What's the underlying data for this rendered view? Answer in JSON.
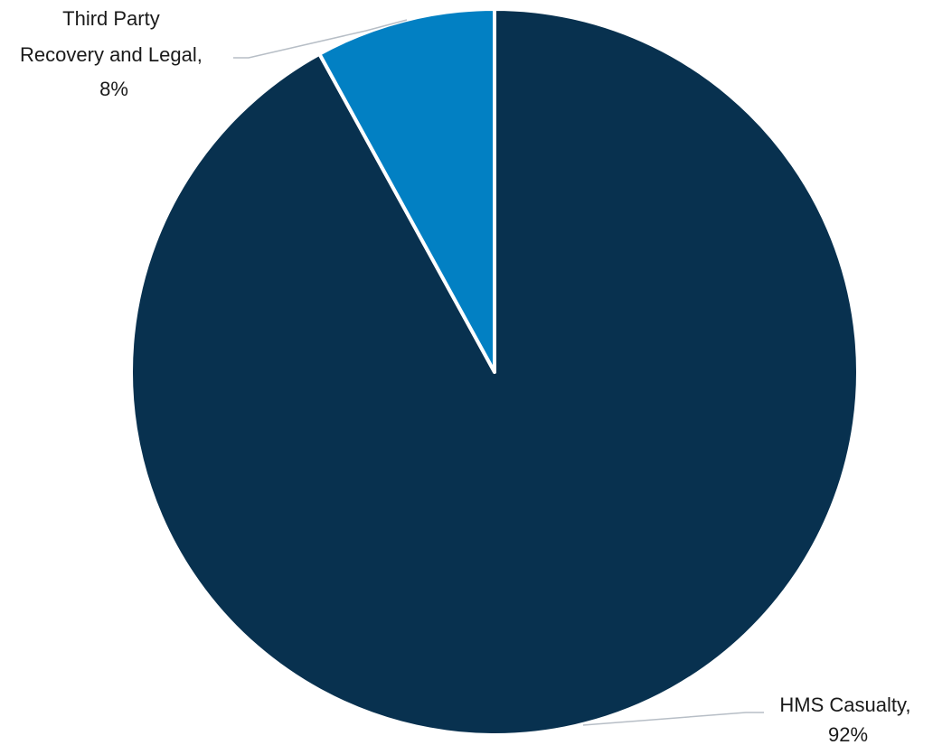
{
  "chart_data": {
    "type": "pie",
    "title": "",
    "start_angle_deg": 0,
    "direction": "clockwise",
    "slices": [
      {
        "name": "HMS Casualty",
        "value": 92,
        "label_line1": "HMS Casualty,",
        "label_line2": "92%",
        "color": "#08314f"
      },
      {
        "name": "Third Party Recovery and Legal",
        "value": 8,
        "label_line1": "Third Party",
        "label_line2": "Recovery and Legal,",
        "label_line3": "8%",
        "color": "#0280c3"
      }
    ],
    "legend": "none",
    "data_labels": "outside-with-leader-lines"
  }
}
